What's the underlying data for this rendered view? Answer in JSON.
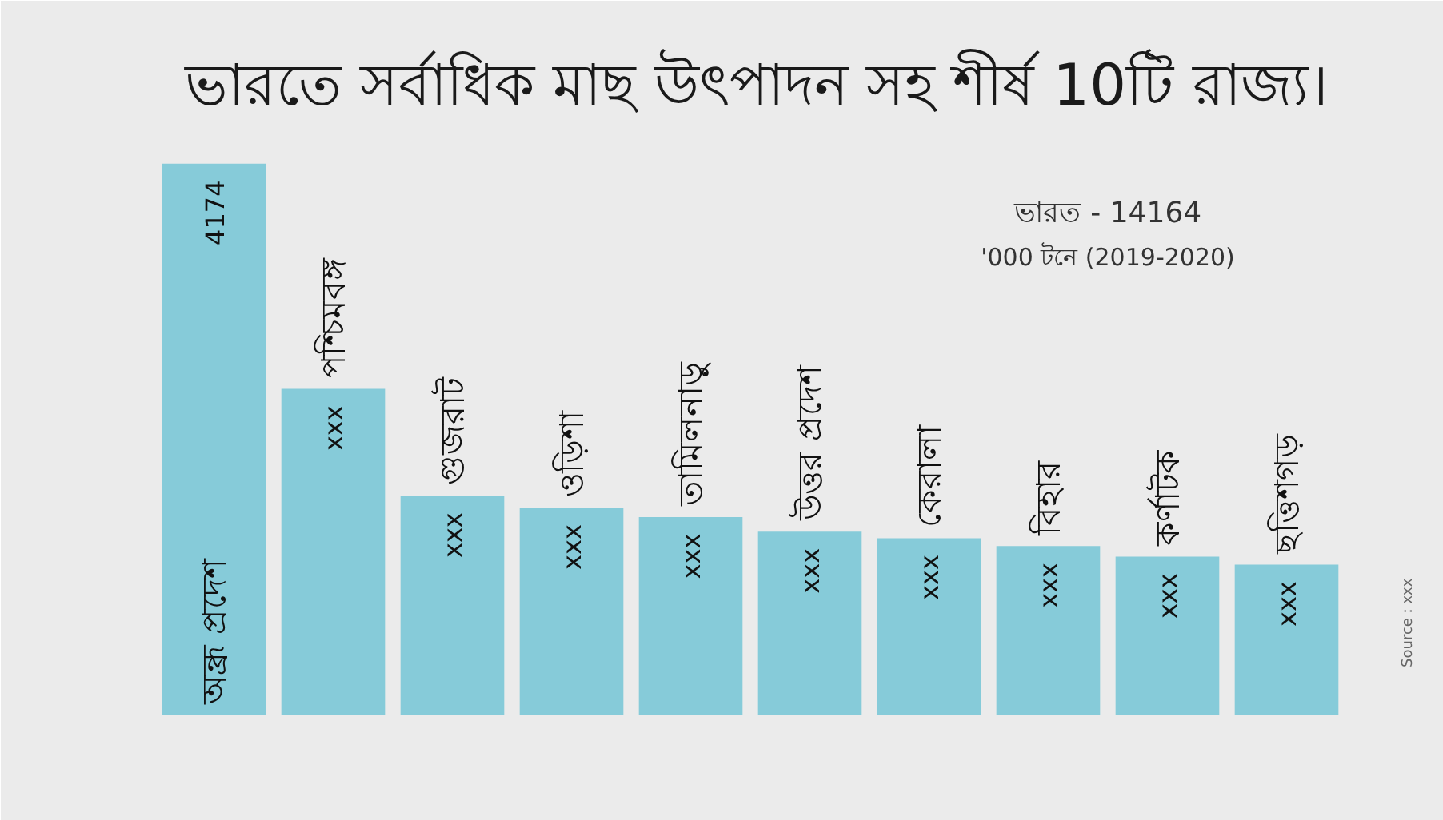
{
  "chart_data": {
    "type": "bar",
    "title": "ভারতে সর্বাধিক মাছ উৎপাদন সহ শীর্ষ 10টি রাজ্য।",
    "categories": [
      "অন্ধ্র প্রদেশ",
      "পশ্চিমবঙ্গ",
      "গুজরাট",
      "ওড়িশা",
      "তামিলনাড়ু",
      "উত্তর প্রদেশ",
      "কেরালা",
      "বিহার",
      "কর্ণাটক",
      "ছত্তিশগড়"
    ],
    "values": [
      4174,
      2470,
      1660,
      1570,
      1500,
      1390,
      1340,
      1280,
      1200,
      1140
    ],
    "tick_labels": "x",
    "color": "#86cbd9",
    "value_labels": [
      "4174",
      "xxx",
      "xxx",
      "xxx",
      "xxx",
      "xxx",
      "xxx",
      "xxx",
      "xxx",
      "xxx"
    ],
    "annotations": [
      "ভারত - 14164",
      "'000 টনে (2019-2020)",
      "Source : xxx"
    ]
  }
}
